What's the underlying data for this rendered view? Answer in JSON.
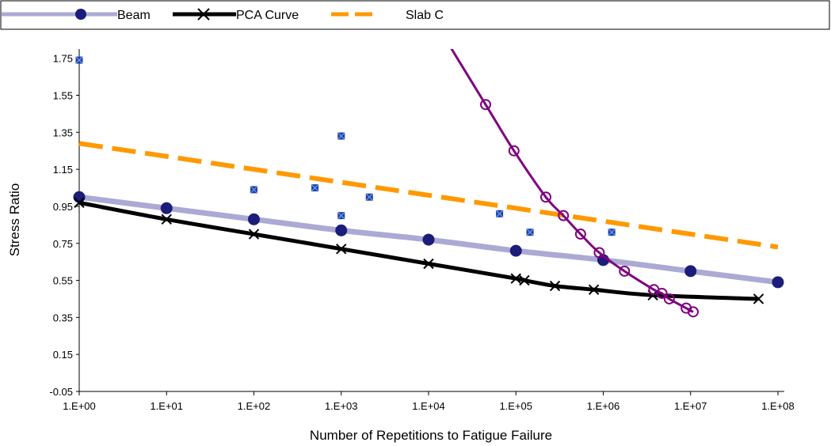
{
  "chart_data": {
    "type": "scatter",
    "xlabel": "Number of Repetitions to Fatigue Failure",
    "ylabel": "Stress Ratio",
    "x_scale": "log",
    "xlim": [
      1,
      100000000
    ],
    "ylim": [
      -0.05,
      1.8
    ],
    "x_ticks": [
      1,
      10,
      100,
      1000,
      10000,
      100000,
      1000000,
      10000000,
      100000000
    ],
    "x_tick_labels": [
      "1.E+00",
      "1.E+01",
      "1.E+02",
      "1.E+03",
      "1.E+04",
      "1.E+05",
      "1.E+06",
      "1.E+07",
      "1.E+08"
    ],
    "y_ticks": [
      -0.05,
      0.15,
      0.35,
      0.55,
      0.75,
      0.95,
      1.15,
      1.35,
      1.55,
      1.75
    ],
    "y_tick_labels": [
      "-0.05",
      "0.15",
      "0.35",
      "0.55",
      "0.75",
      "0.95",
      "1.15",
      "1.35",
      "1.55",
      "1.75"
    ],
    "grid": false,
    "legend_position": "top",
    "colors": {
      "beam": "#aaaad4",
      "beam_marker": "#1c1c7a",
      "pca": "#000000",
      "slab_c": "#ff9900",
      "purple": "#800080",
      "points": "#1f3f9f"
    },
    "series": [
      {
        "name": "Beam",
        "x": [
          1,
          10,
          100,
          1000,
          10000,
          100000,
          1000000,
          10000000,
          100000000
        ],
        "y": [
          1.0,
          0.94,
          0.88,
          0.82,
          0.77,
          0.71,
          0.66,
          0.6,
          0.54
        ]
      },
      {
        "name": "PCA Curve",
        "x": [
          1,
          10,
          100,
          1000,
          10000,
          100000,
          125000,
          280000,
          780000,
          3700000,
          60000000
        ],
        "y": [
          0.97,
          0.88,
          0.8,
          0.72,
          0.64,
          0.56,
          0.55,
          0.52,
          0.5,
          0.47,
          0.45
        ]
      },
      {
        "name": "Slab C",
        "x": [
          1,
          100000000
        ],
        "y": [
          1.29,
          0.73
        ]
      },
      {
        "x": [
          45000,
          95000,
          220000,
          350000,
          550000,
          900000,
          1750000,
          3800000,
          4700000,
          5700000,
          8900000,
          10700000
        ],
        "y": [
          1.5,
          1.25,
          1.0,
          0.9,
          0.8,
          0.7,
          0.6,
          0.5,
          0.48,
          0.45,
          0.4,
          0.38
        ]
      },
      {
        "x": [
          1,
          100,
          500,
          1000,
          1000,
          2100,
          65000,
          145000,
          1250000
        ],
        "y": [
          1.74,
          1.04,
          1.05,
          1.33,
          0.9,
          1.0,
          0.91,
          0.81,
          0.81
        ]
      }
    ]
  }
}
